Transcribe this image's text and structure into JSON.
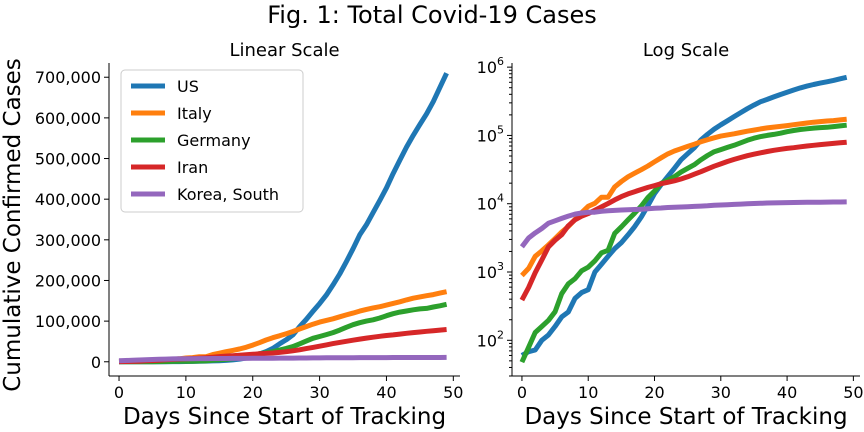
{
  "figure": {
    "title": "Fig. 1: Total Covid-19 Cases",
    "ylabel": "Cumulative Confirmed Cases"
  },
  "chart_data": [
    {
      "type": "line",
      "title": "Linear Scale",
      "xlabel": "Days Since Start of Tracking",
      "ylabel": "Cumulative Confirmed Cases",
      "xlim": [
        -1.5,
        51
      ],
      "ylim": [
        -35000,
        735000
      ],
      "yscale": "linear",
      "xticks": [
        0,
        10,
        20,
        30,
        40,
        50
      ],
      "xtick_labels": [
        "0",
        "10",
        "20",
        "30",
        "40",
        "50"
      ],
      "yticks": [
        0,
        100000,
        200000,
        300000,
        400000,
        500000,
        600000,
        700000
      ],
      "ytick_labels": [
        "0",
        "100,000",
        "200,000",
        "300,000",
        "400,000",
        "500,000",
        "600,000",
        "700,000"
      ],
      "grid": false,
      "legend": "upper-left"
    },
    {
      "type": "line",
      "title": "Log Scale",
      "xlabel": "Days Since Start of Tracking",
      "xlim": [
        -1.5,
        51
      ],
      "ylim": [
        30,
        1150000
      ],
      "yscale": "log",
      "xticks": [
        0,
        10,
        20,
        30,
        40,
        50
      ],
      "xtick_labels": [
        "0",
        "10",
        "20",
        "30",
        "40",
        "50"
      ],
      "yticks": [
        100,
        1000,
        10000,
        100000,
        1000000
      ],
      "ytick_labels": [
        {
          "base": "10",
          "exp": "2"
        },
        {
          "base": "10",
          "exp": "3"
        },
        {
          "base": "10",
          "exp": "4"
        },
        {
          "base": "10",
          "exp": "5"
        },
        {
          "base": "10",
          "exp": "6"
        }
      ],
      "grid": false
    }
  ],
  "series": [
    {
      "name": "US",
      "color": "#1f77b4",
      "x": [
        0,
        1,
        2,
        3,
        4,
        5,
        6,
        7,
        8,
        9,
        10,
        11,
        12,
        13,
        14,
        15,
        16,
        17,
        18,
        19,
        20,
        21,
        22,
        23,
        24,
        25,
        26,
        27,
        28,
        29,
        30,
        31,
        32,
        33,
        34,
        35,
        36,
        37,
        38,
        39,
        40,
        41,
        42,
        43,
        44,
        45,
        46,
        47,
        48,
        49
      ],
      "values": [
        60,
        68,
        72,
        100,
        120,
        160,
        220,
        260,
        410,
        500,
        550,
        1000,
        1300,
        1700,
        2200,
        2700,
        3500,
        4600,
        6400,
        9400,
        14000,
        19000,
        25000,
        33000,
        44000,
        54000,
        66000,
        86000,
        104000,
        124000,
        143000,
        164000,
        189000,
        216000,
        246000,
        278000,
        312000,
        337000,
        367000,
        397000,
        428000,
        463000,
        496000,
        528000,
        557000,
        584000,
        610000,
        640000,
        675000,
        710000
      ]
    },
    {
      "name": "Italy",
      "color": "#ff7f0e",
      "x": [
        0,
        1,
        2,
        3,
        4,
        5,
        6,
        7,
        8,
        9,
        10,
        11,
        12,
        13,
        14,
        15,
        16,
        17,
        18,
        19,
        20,
        21,
        22,
        23,
        24,
        25,
        26,
        27,
        28,
        29,
        30,
        31,
        32,
        33,
        34,
        35,
        36,
        37,
        38,
        39,
        40,
        41,
        42,
        43,
        44,
        45,
        46,
        47,
        48,
        49
      ],
      "values": [
        890,
        1130,
        1700,
        2040,
        2500,
        3090,
        3860,
        4640,
        5880,
        7380,
        9170,
        10150,
        12460,
        12460,
        17660,
        21160,
        24750,
        27980,
        31510,
        35710,
        41040,
        47020,
        53580,
        59140,
        63930,
        69180,
        74390,
        80590,
        86500,
        92470,
        97690,
        101740,
        105790,
        110570,
        115240,
        119830,
        124630,
        128950,
        132550,
        135590,
        139420,
        143630,
        147580,
        152270,
        156360,
        159520,
        162490,
        165150,
        168940,
        172430
      ]
    },
    {
      "name": "Germany",
      "color": "#2ca02c",
      "x": [
        0,
        1,
        2,
        3,
        4,
        5,
        6,
        7,
        8,
        9,
        10,
        11,
        12,
        13,
        14,
        15,
        16,
        17,
        18,
        19,
        20,
        21,
        22,
        23,
        24,
        25,
        26,
        27,
        28,
        29,
        30,
        31,
        32,
        33,
        34,
        35,
        36,
        37,
        38,
        39,
        40,
        41,
        42,
        43,
        44,
        45,
        46,
        47,
        48,
        49
      ],
      "values": [
        48,
        79,
        130,
        159,
        196,
        262,
        482,
        670,
        799,
        1040,
        1176,
        1457,
        1908,
        2078,
        3675,
        4585,
        5795,
        7272,
        9257,
        12327,
        15320,
        19848,
        22213,
        24873,
        29056,
        32986,
        37323,
        43938,
        50871,
        57695,
        62095,
        66885,
        71808,
        77872,
        84794,
        91159,
        96092,
        100123,
        103374,
        107663,
        113296,
        118181,
        122171,
        124908,
        127854,
        130072,
        131359,
        134753,
        137698,
        141397
      ]
    },
    {
      "name": "Iran",
      "color": "#d62728",
      "x": [
        0,
        1,
        2,
        3,
        4,
        5,
        6,
        7,
        8,
        9,
        10,
        11,
        12,
        13,
        14,
        15,
        16,
        17,
        18,
        19,
        20,
        21,
        22,
        23,
        24,
        25,
        26,
        27,
        28,
        29,
        30,
        31,
        32,
        33,
        34,
        35,
        36,
        37,
        38,
        39,
        40,
        41,
        42,
        43,
        44,
        45,
        46,
        47,
        48,
        49
      ],
      "values": [
        388,
        593,
        978,
        1501,
        2336,
        2922,
        3513,
        4747,
        5823,
        6566,
        7161,
        8042,
        9000,
        10075,
        11364,
        12729,
        13938,
        14991,
        16169,
        17361,
        18407,
        19644,
        20610,
        21638,
        23049,
        24811,
        27017,
        29406,
        32332,
        35408,
        38309,
        41495,
        44605,
        47593,
        50468,
        53183,
        55743,
        58226,
        60500,
        62589,
        64586,
        66220,
        68192,
        70029,
        71686,
        73303,
        74877,
        76389,
        77995,
        79494
      ]
    },
    {
      "name": "Korea, South",
      "color": "#9467bd",
      "x": [
        0,
        1,
        2,
        3,
        4,
        5,
        6,
        7,
        8,
        9,
        10,
        11,
        12,
        13,
        14,
        15,
        16,
        17,
        18,
        19,
        20,
        21,
        22,
        23,
        24,
        25,
        26,
        27,
        28,
        29,
        30,
        31,
        32,
        33,
        34,
        35,
        36,
        37,
        38,
        39,
        40,
        41,
        42,
        43,
        44,
        45,
        46,
        47,
        48,
        49
      ],
      "values": [
        2337,
        3150,
        3736,
        4335,
        5186,
        5621,
        6088,
        6593,
        7041,
        7314,
        7478,
        7513,
        7755,
        7869,
        7979,
        8086,
        8162,
        8236,
        8320,
        8413,
        8565,
        8652,
        8799,
        8897,
        8961,
        9037,
        9137,
        9241,
        9332,
        9478,
        9583,
        9661,
        9786,
        9887,
        9976,
        10062,
        10156,
        10237,
        10284,
        10331,
        10384,
        10423,
        10450,
        10480,
        10512,
        10537,
        10564,
        10591,
        10613,
        10635
      ]
    }
  ]
}
